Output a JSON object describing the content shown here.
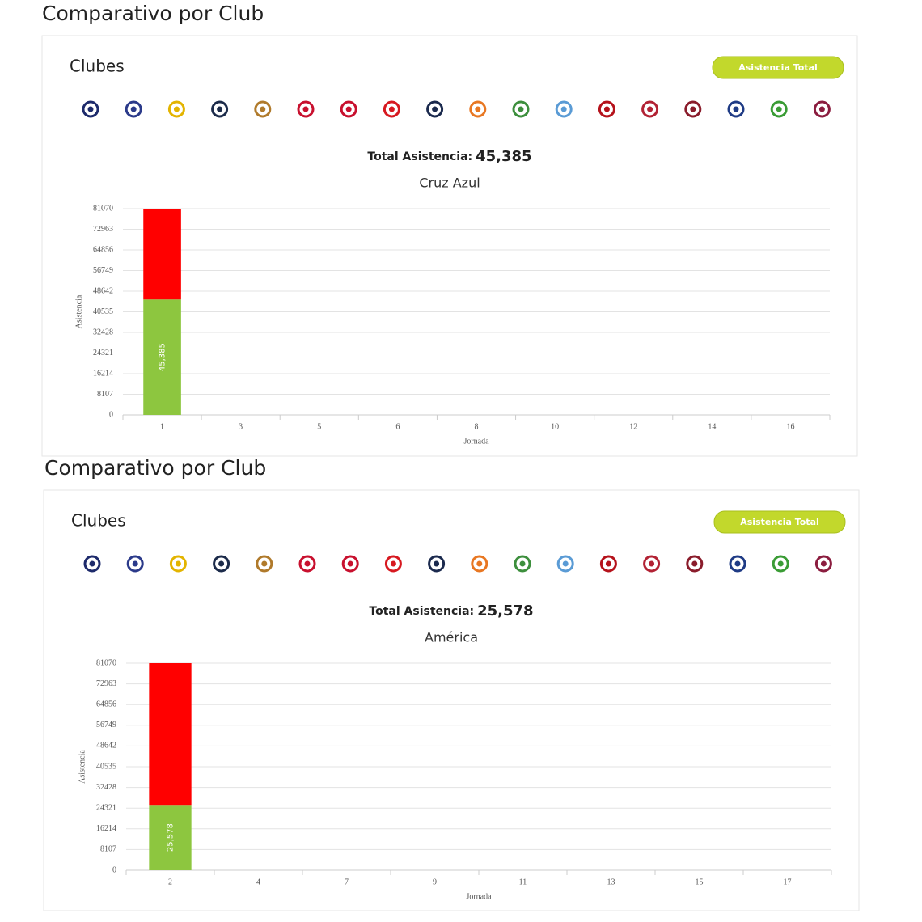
{
  "panels": [
    {
      "heading": "Comparativo por Club",
      "clubs_label": "Clubes",
      "button": "Asistencia Total",
      "total_label": "Total Asistencia:",
      "total_value": "45,385",
      "club_name": "Cruz Azul",
      "chart_data": {
        "type": "bar",
        "stacked": true,
        "y_label": "Asistencia",
        "x_label": "Jornada",
        "categories": [
          "1",
          "3",
          "5",
          "6",
          "8",
          "10",
          "12",
          "14",
          "16"
        ],
        "series": [
          {
            "color": "#8dc63f",
            "values": [
              45385,
              null,
              null,
              null,
              null,
              null,
              null,
              null,
              null
            ],
            "value_labels": [
              "45,385",
              null,
              null,
              null,
              null,
              null,
              null,
              null,
              null
            ]
          },
          {
            "color": "#ff0000",
            "values": [
              35685,
              null,
              null,
              null,
              null,
              null,
              null,
              null,
              null
            ]
          }
        ],
        "ylim": [
          0,
          81070
        ],
        "yticks": [
          0,
          8107,
          16214,
          24321,
          32428,
          40535,
          48642,
          56749,
          64856,
          72963,
          81070
        ],
        "grid": true
      }
    },
    {
      "heading": "Comparativo por Club",
      "clubs_label": "Clubes",
      "button": "Asistencia Total",
      "total_label": "Total Asistencia:",
      "total_value": "25,578",
      "club_name": "América",
      "chart_data": {
        "type": "bar",
        "stacked": true,
        "y_label": "Asistencia",
        "x_label": "Jornada",
        "categories": [
          "2",
          "4",
          "7",
          "9",
          "11",
          "13",
          "15",
          "17"
        ],
        "series": [
          {
            "color": "#8dc63f",
            "values": [
              25578,
              null,
              null,
              null,
              null,
              null,
              null,
              null
            ],
            "value_labels": [
              "25,578",
              null,
              null,
              null,
              null,
              null,
              null,
              null
            ]
          },
          {
            "color": "#ff0000",
            "values": [
              55492,
              null,
              null,
              null,
              null,
              null,
              null,
              null
            ]
          }
        ],
        "ylim": [
          0,
          81070
        ],
        "yticks": [
          0,
          8107,
          16214,
          24321,
          32428,
          40535,
          48642,
          56749,
          64856,
          72963,
          81070
        ],
        "grid": true
      }
    }
  ]
}
